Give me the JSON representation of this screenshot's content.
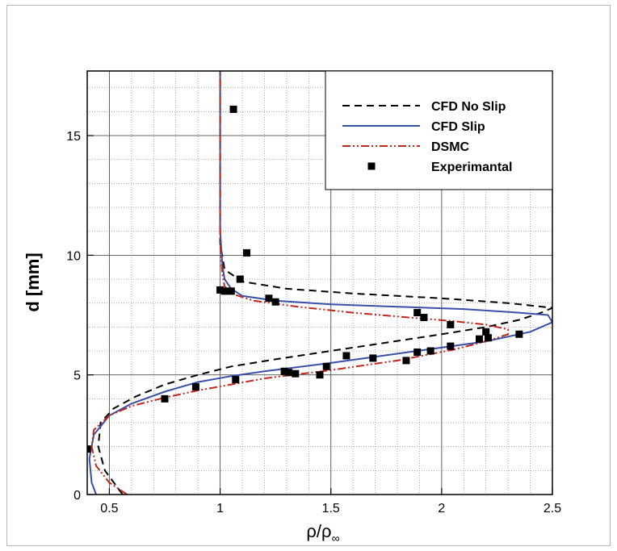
{
  "chart_data": {
    "type": "line",
    "xlabel": "ρ/ρ",
    "xlabel_sub": "∞",
    "ylabel": "d [mm]",
    "xlim": [
      0.4,
      2.5
    ],
    "ylim": [
      0,
      17.7
    ],
    "x_ticks": [
      0.5,
      1,
      1.5,
      2,
      2.5
    ],
    "x_tick_labels": [
      "0.5",
      "1",
      "1.5",
      "2",
      "2.5"
    ],
    "y_ticks": [
      0,
      5,
      10,
      15
    ],
    "y_tick_labels": [
      "0",
      "5",
      "10",
      "15"
    ],
    "grid": true,
    "legend_position": "top-right",
    "legend": [
      "CFD No Slip",
      "CFD Slip",
      "DSMC",
      "Experimantal"
    ],
    "series": [
      {
        "name": "CFD No Slip",
        "style": "dashed",
        "color": "#000000",
        "x": [
          0.56,
          0.48,
          0.45,
          0.46,
          0.52,
          0.62,
          0.75,
          0.9,
          1.05,
          1.25,
          1.5,
          1.75,
          2.0,
          2.2,
          2.35,
          2.45,
          2.5,
          2.3,
          2.0,
          1.6,
          1.3,
          1.1,
          1.02,
          1.0,
          1.0,
          1.0
        ],
        "y": [
          0.0,
          1.0,
          2.0,
          3.0,
          3.6,
          4.1,
          4.6,
          5.0,
          5.35,
          5.65,
          6.0,
          6.35,
          6.7,
          7.0,
          7.3,
          7.6,
          7.8,
          8.0,
          8.2,
          8.4,
          8.6,
          8.9,
          9.4,
          10.5,
          13.0,
          17.7
        ]
      },
      {
        "name": "CFD Slip",
        "style": "solid",
        "color": "#3a4fa8",
        "x": [
          0.44,
          0.42,
          0.41,
          0.43,
          0.5,
          0.6,
          0.75,
          0.9,
          1.05,
          1.2,
          1.5,
          1.85,
          2.2,
          2.4,
          2.5,
          2.48,
          2.35,
          2.1,
          1.8,
          1.5,
          1.25,
          1.1,
          1.05,
          1.02,
          1.01,
          1.0,
          1.0,
          1.0
        ],
        "y": [
          0.0,
          0.5,
          1.5,
          2.5,
          3.3,
          3.8,
          4.3,
          4.7,
          4.95,
          5.15,
          5.5,
          5.95,
          6.4,
          6.8,
          7.2,
          7.5,
          7.6,
          7.75,
          7.85,
          7.95,
          8.1,
          8.3,
          8.6,
          9.0,
          9.6,
          11.0,
          14.0,
          17.7
        ]
      },
      {
        "name": "DSMC",
        "style": "dash-dot-dot",
        "color": "#c0281e",
        "x": [
          0.58,
          0.5,
          0.44,
          0.42,
          0.43,
          0.5,
          0.6,
          0.75,
          0.9,
          1.05,
          1.2,
          1.5,
          1.8,
          2.05,
          2.2,
          2.3,
          2.3,
          2.2,
          2.05,
          1.85,
          1.6,
          1.35,
          1.15,
          1.05,
          1.02,
          1.01,
          1.0,
          1.0,
          1.0
        ],
        "y": [
          0.0,
          0.5,
          1.2,
          2.0,
          2.7,
          3.3,
          3.7,
          4.05,
          4.35,
          4.6,
          4.85,
          5.2,
          5.6,
          6.05,
          6.4,
          6.7,
          6.9,
          7.1,
          7.25,
          7.4,
          7.6,
          7.85,
          8.1,
          8.4,
          8.7,
          9.2,
          10.5,
          14.0,
          17.7
        ]
      },
      {
        "name": "Experimantal",
        "style": "markers",
        "color": "#000000",
        "x": [
          0.4,
          0.75,
          0.89,
          1.07,
          1.29,
          1.31,
          1.34,
          1.45,
          1.48,
          1.57,
          1.69,
          1.84,
          1.89,
          1.95,
          2.04,
          2.17,
          2.2,
          2.21,
          2.35,
          1.89,
          1.92,
          2.04,
          1.22,
          1.25,
          1.0,
          1.02,
          1.05,
          1.09,
          1.12,
          1.06
        ],
        "y": [
          1.9,
          4.0,
          4.5,
          4.8,
          5.15,
          5.1,
          5.05,
          5.0,
          5.35,
          5.8,
          5.7,
          5.6,
          5.95,
          6.0,
          6.2,
          6.5,
          6.8,
          6.55,
          6.7,
          7.6,
          7.4,
          7.1,
          8.2,
          8.05,
          8.55,
          8.5,
          8.5,
          9.0,
          10.1,
          16.1
        ]
      }
    ]
  }
}
